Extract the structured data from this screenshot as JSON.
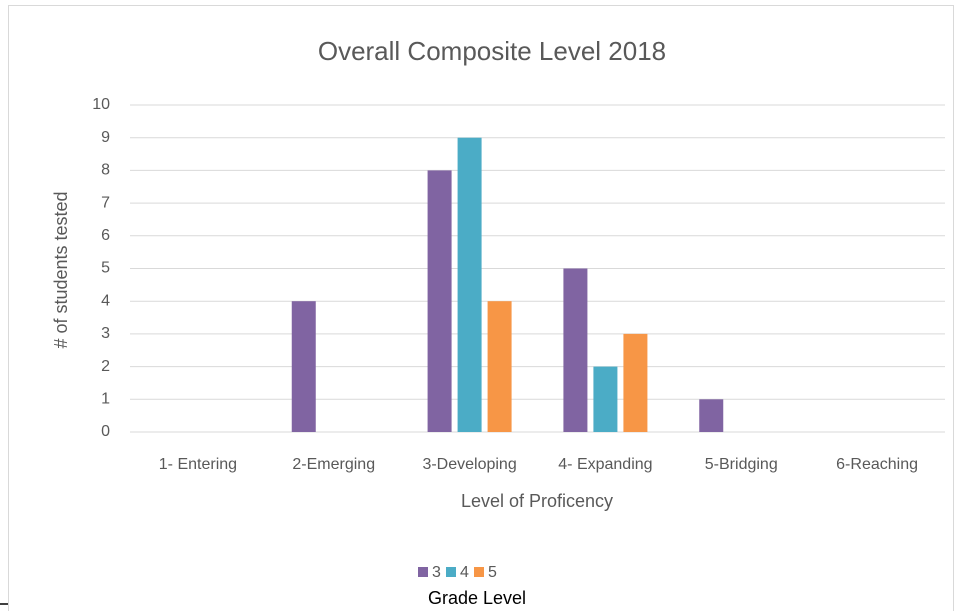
{
  "chart_data": {
    "type": "bar",
    "title": "Overall Composite Level 2018",
    "x_label": "Level of Proficency",
    "y_label": "# of students tested",
    "legend_title": "Grade Level",
    "legend": "bottom",
    "grid": true,
    "categories": [
      "1- Entering",
      "2-Emerging",
      "3-Developing",
      "4- Expanding",
      "5-Bridging",
      "6-Reaching"
    ],
    "series": [
      {
        "name": "3",
        "color": "#8064a2",
        "values": [
          0,
          4,
          8,
          5,
          1,
          0
        ]
      },
      {
        "name": "4",
        "color": "#4bacc6",
        "values": [
          0,
          0,
          9,
          2,
          0,
          0
        ]
      },
      {
        "name": "5",
        "color": "#f79646",
        "values": [
          0,
          0,
          4,
          3,
          0,
          0
        ]
      }
    ],
    "ylim": [
      0,
      10
    ],
    "yticks": [
      0,
      1,
      2,
      3,
      4,
      5,
      6,
      7,
      8,
      9,
      10
    ]
  }
}
